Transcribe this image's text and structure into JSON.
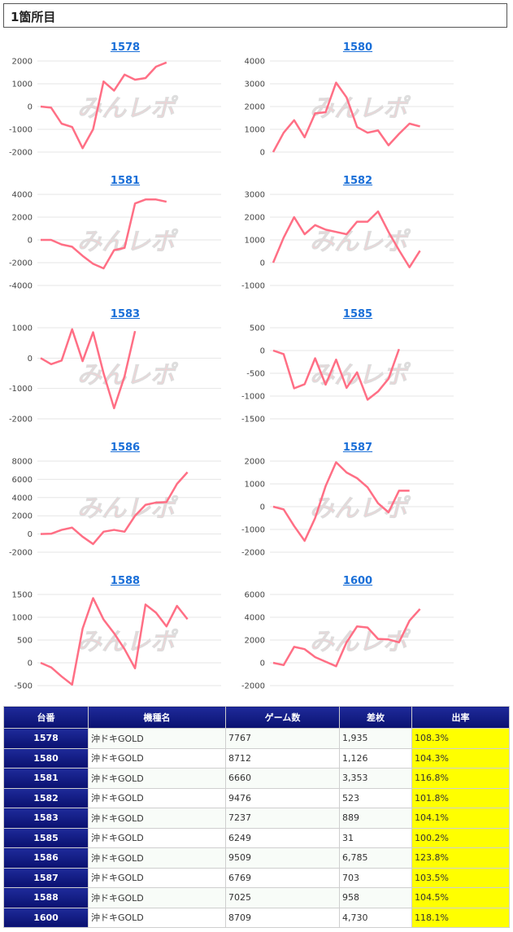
{
  "header": {
    "title": "1箇所目"
  },
  "watermark": "みんレポ",
  "line_color": "#ff6f85",
  "chart_data": [
    {
      "type": "line",
      "title": "1578",
      "ylim": [
        -2000,
        2000
      ],
      "yticks": [
        2000,
        1000,
        0,
        -1000,
        -2000
      ],
      "yticklabels": [
        "2000",
        "1000",
        "0",
        "-1000",
        "-2000"
      ],
      "values": [
        0,
        -50,
        -750,
        -900,
        -1830,
        -1000,
        1100,
        700,
        1400,
        1180,
        1250,
        1750,
        1935
      ]
    },
    {
      "type": "line",
      "title": "1580",
      "ylim": [
        0,
        4000
      ],
      "yticks": [
        4000,
        3000,
        2000,
        1000,
        0
      ],
      "yticklabels": [
        "4000",
        "3000",
        "2000",
        "1000",
        "0"
      ],
      "values": [
        0,
        850,
        1400,
        650,
        1700,
        1750,
        3050,
        2400,
        1100,
        850,
        950,
        300,
        800,
        1250,
        1126
      ]
    },
    {
      "type": "line",
      "title": "1581",
      "ylim": [
        -4000,
        4000
      ],
      "yticks": [
        4000,
        2000,
        0,
        -2000,
        -4000
      ],
      "yticklabels": [
        "4000",
        "2000",
        "0",
        "-2000",
        "-4000"
      ],
      "values": [
        0,
        0,
        -400,
        -600,
        -1400,
        -2100,
        -2500,
        -900,
        -700,
        3200,
        3550,
        3550,
        3353
      ]
    },
    {
      "type": "line",
      "title": "1582",
      "ylim": [
        -1000,
        3000
      ],
      "yticks": [
        3000,
        2000,
        1000,
        0,
        -1000
      ],
      "yticklabels": [
        "3000",
        "2000",
        "1000",
        "0",
        "-1000"
      ],
      "values": [
        0,
        1100,
        2000,
        1250,
        1650,
        1450,
        1350,
        1250,
        1800,
        1800,
        2250,
        1350,
        550,
        -200,
        523
      ]
    },
    {
      "type": "line",
      "title": "1583",
      "ylim": [
        -2000,
        1000
      ],
      "yticks": [
        1000,
        0,
        -1000,
        -2000
      ],
      "yticklabels": [
        "1000",
        "0",
        "-1000",
        "-2000"
      ],
      "values": [
        0,
        -200,
        -80,
        950,
        -100,
        850,
        -500,
        -1650,
        -600,
        889
      ]
    },
    {
      "type": "line",
      "title": "1585",
      "ylim": [
        -1500,
        500
      ],
      "yticks": [
        500,
        0,
        -500,
        -1000,
        -1500
      ],
      "yticklabels": [
        "500",
        "0",
        "-500",
        "-1000",
        "-1500"
      ],
      "values": [
        0,
        -80,
        -830,
        -740,
        -170,
        -750,
        -200,
        -820,
        -480,
        -1080,
        -900,
        -620,
        31
      ]
    },
    {
      "type": "line",
      "title": "1586",
      "ylim": [
        -2000,
        8000
      ],
      "yticks": [
        8000,
        6000,
        4000,
        2000,
        0,
        -2000
      ],
      "yticklabels": [
        "8000",
        "6000",
        "4000",
        "2000",
        "0",
        "-2000"
      ],
      "values": [
        0,
        30,
        450,
        700,
        -300,
        -1100,
        250,
        450,
        250,
        2000,
        3200,
        3450,
        3500,
        5500,
        6785
      ]
    },
    {
      "type": "line",
      "title": "1587",
      "ylim": [
        -2000,
        2000
      ],
      "yticks": [
        2000,
        1000,
        0,
        -1000,
        -2000
      ],
      "yticklabels": [
        "2000",
        "1000",
        "0",
        "-1000",
        "-2000"
      ],
      "values": [
        0,
        -120,
        -850,
        -1500,
        -500,
        900,
        1950,
        1500,
        1250,
        850,
        150,
        -250,
        703,
        703
      ]
    },
    {
      "type": "line",
      "title": "1588",
      "ylim": [
        -500,
        1500
      ],
      "yticks": [
        1500,
        1000,
        500,
        0,
        -500
      ],
      "yticklabels": [
        "1500",
        "1000",
        "500",
        "0",
        "-500"
      ],
      "values": [
        0,
        -100,
        -300,
        -480,
        750,
        1420,
        950,
        650,
        300,
        -120,
        1280,
        1100,
        800,
        1250,
        958
      ]
    },
    {
      "type": "line",
      "title": "1600",
      "ylim": [
        -2000,
        6000
      ],
      "yticks": [
        6000,
        4000,
        2000,
        0,
        -2000
      ],
      "yticklabels": [
        "6000",
        "4000",
        "2000",
        "0",
        "-2000"
      ],
      "values": [
        0,
        -200,
        1400,
        1200,
        500,
        100,
        -300,
        1800,
        3200,
        3100,
        2100,
        2050,
        1800,
        3700,
        4730
      ]
    }
  ],
  "table": {
    "headers": [
      "台番",
      "機種名",
      "ゲーム数",
      "差枚",
      "出率"
    ],
    "rows": [
      [
        "1578",
        "沖ドキGOLD",
        "7767",
        "1,935",
        "108.3%"
      ],
      [
        "1580",
        "沖ドキGOLD",
        "8712",
        "1,126",
        "104.3%"
      ],
      [
        "1581",
        "沖ドキGOLD",
        "6660",
        "3,353",
        "116.8%"
      ],
      [
        "1582",
        "沖ドキGOLD",
        "9476",
        "523",
        "101.8%"
      ],
      [
        "1583",
        "沖ドキGOLD",
        "7237",
        "889",
        "104.1%"
      ],
      [
        "1585",
        "沖ドキGOLD",
        "6249",
        "31",
        "100.2%"
      ],
      [
        "1586",
        "沖ドキGOLD",
        "9509",
        "6,785",
        "123.8%"
      ],
      [
        "1587",
        "沖ドキGOLD",
        "6769",
        "703",
        "103.5%"
      ],
      [
        "1588",
        "沖ドキGOLD",
        "7025",
        "958",
        "104.5%"
      ],
      [
        "1600",
        "沖ドキGOLD",
        "8709",
        "4,730",
        "118.1%"
      ]
    ]
  }
}
